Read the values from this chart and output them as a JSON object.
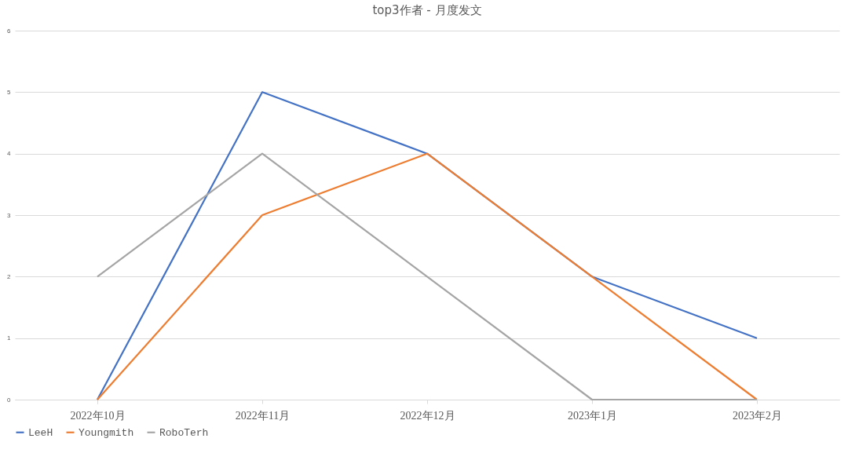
{
  "chart_data": {
    "type": "line",
    "title": "top3作者 - 月度发文",
    "categories": [
      "2022年10月",
      "2022年11月",
      "2022年12月",
      "2023年1月",
      "2023年2月"
    ],
    "series": [
      {
        "name": "LeeH",
        "color": "#4472c4",
        "values": [
          0,
          5,
          4,
          2,
          1
        ]
      },
      {
        "name": "Youngmith",
        "color": "#ed7d31",
        "values": [
          0,
          3,
          4,
          2,
          0
        ]
      },
      {
        "name": "RoboTerh",
        "color": "#a5a5a5",
        "values": [
          2,
          4,
          2,
          0,
          0
        ]
      }
    ],
    "ylim": [
      0,
      6
    ],
    "yticks": [
      0,
      1,
      2,
      3,
      4,
      5,
      6
    ],
    "grid": "y",
    "legend": "bottom",
    "marker": "none",
    "line_style": "solid"
  }
}
